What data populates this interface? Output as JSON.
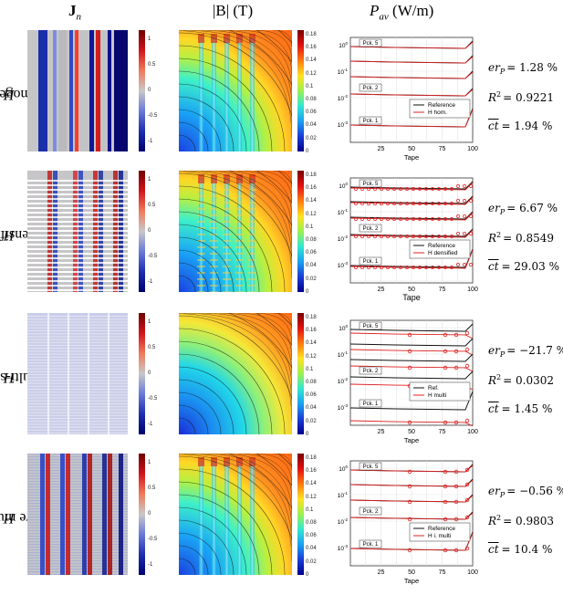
{
  "headers": {
    "jn": "J",
    "jn_sub": "n",
    "b": "|B| (T)",
    "p": "P",
    "p_sub": "av",
    "p_unit": "(W/m)"
  },
  "colorbar_jn_ticks": [
    "1",
    "0.5",
    "0",
    "-0.5",
    "-1"
  ],
  "colorbar_b_ticks": [
    "0.18",
    "0.16",
    "0.14",
    "0.12",
    "0.1",
    "0.08",
    "0.06",
    "0.04",
    "0.02",
    "0"
  ],
  "plot_common": {
    "xticks": [
      "25",
      "50",
      "75",
      "100"
    ],
    "yticks": [
      "10",
      "10",
      "10",
      "10",
      "10"
    ],
    "yexp": [
      "0",
      "-1",
      "-2",
      "-3"
    ],
    "pck_labels": [
      "Pck. 5",
      "Pck. 2",
      "Pck. 1"
    ]
  },
  "rows": [
    {
      "label_var": "H",
      "label_rest": " homogenous",
      "legend": [
        "Reference",
        "H hom."
      ],
      "xlabel": "Tape",
      "er_label": "er",
      "er_sub": "P",
      "er_value": "= 1.28 %",
      "r2_label": "R",
      "r2_value": "= 0.9221",
      "ct_label": "ct",
      "ct_value": "= 1.94 %"
    },
    {
      "label_var": "H",
      "label_rest": " densified",
      "legend": [
        "Reference",
        "H densified"
      ],
      "xlabel": "Tape",
      "er_label": "er",
      "er_sub": "P",
      "er_value": "= 6.67 %",
      "r2_label": "R",
      "r2_value": "= 0.8549",
      "ct_label": "ct",
      "ct_value": "= 29.03 %"
    },
    {
      "label_var": "H",
      "label_rest": " multi-scale",
      "legend": [
        "Ref.",
        "H multi"
      ],
      "xlabel": "Tape",
      "er_label": "er",
      "er_sub": "P",
      "er_value": "= −21.7 %",
      "r2_label": "R",
      "r2_value": "= 0.0302",
      "ct_label": "ct",
      "ct_value": "= 1.45 %"
    },
    {
      "label_var": "H",
      "label_rest": " iterative multi-scale",
      "legend": [
        "Reference",
        "H  i. multi"
      ],
      "xlabel": "Tape",
      "er_label": "er",
      "er_sub": "P",
      "er_value": "= −0.56 %",
      "r2_label": "R",
      "r2_value": "= 0.9803",
      "ct_label": "ct",
      "ct_value": "= 10.4 %"
    }
  ]
}
